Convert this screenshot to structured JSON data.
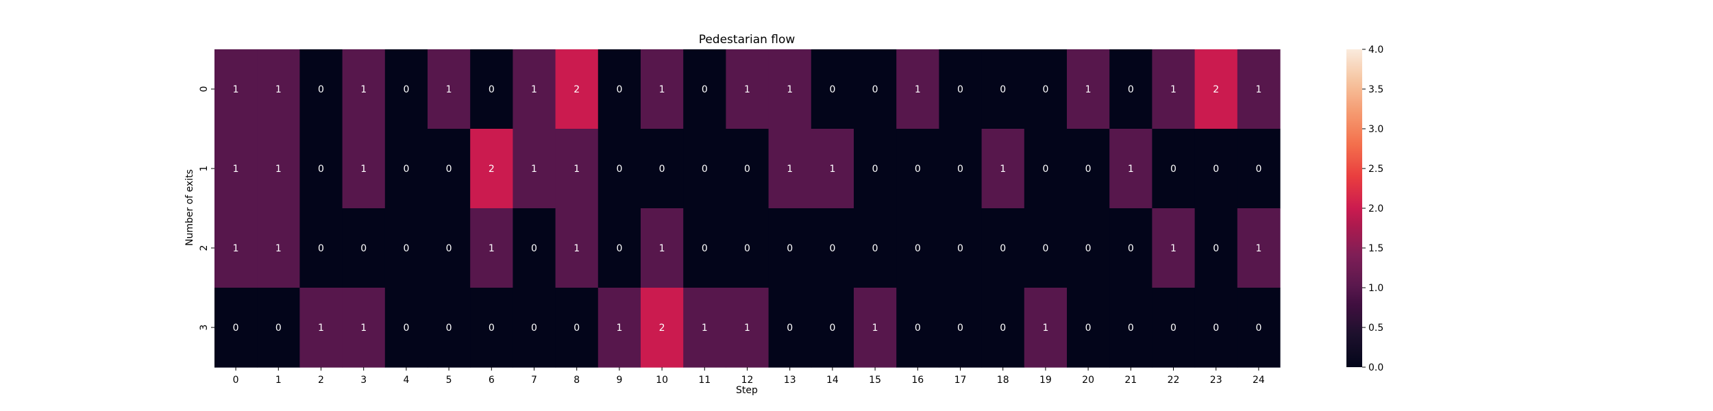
{
  "chart_data": {
    "type": "heatmap",
    "title": "Pedestarian flow",
    "xlabel": "Step",
    "ylabel": "Number of exits",
    "x": [
      "0",
      "1",
      "2",
      "3",
      "4",
      "5",
      "6",
      "7",
      "8",
      "9",
      "10",
      "11",
      "12",
      "13",
      "14",
      "15",
      "16",
      "17",
      "18",
      "19",
      "20",
      "21",
      "22",
      "23",
      "24"
    ],
    "y": [
      "0",
      "1",
      "2",
      "3"
    ],
    "values": [
      [
        1,
        1,
        0,
        1,
        0,
        1,
        0,
        1,
        2,
        0,
        1,
        0,
        1,
        1,
        0,
        0,
        1,
        0,
        0,
        0,
        1,
        0,
        1,
        2,
        1
      ],
      [
        1,
        1,
        0,
        1,
        0,
        0,
        2,
        1,
        1,
        0,
        0,
        0,
        0,
        1,
        1,
        0,
        0,
        0,
        1,
        0,
        0,
        1,
        0,
        0,
        0
      ],
      [
        1,
        1,
        0,
        0,
        0,
        0,
        1,
        0,
        1,
        0,
        1,
        0,
        0,
        0,
        0,
        0,
        0,
        0,
        0,
        0,
        0,
        0,
        1,
        0,
        1
      ],
      [
        0,
        0,
        1,
        1,
        0,
        0,
        0,
        0,
        0,
        1,
        2,
        1,
        1,
        0,
        0,
        1,
        0,
        0,
        0,
        1,
        0,
        0,
        0,
        0,
        0
      ]
    ],
    "annotations": true,
    "vmin": 0,
    "vmax": 4,
    "colormap": "rocket",
    "colorbar_ticks": [
      "0.0",
      "0.5",
      "1.0",
      "1.5",
      "2.0",
      "2.5",
      "3.0",
      "3.5",
      "4.0"
    ],
    "colorbar_tick_values": [
      0,
      0.5,
      1,
      1.5,
      2,
      2.5,
      3,
      3.5,
      4
    ]
  }
}
